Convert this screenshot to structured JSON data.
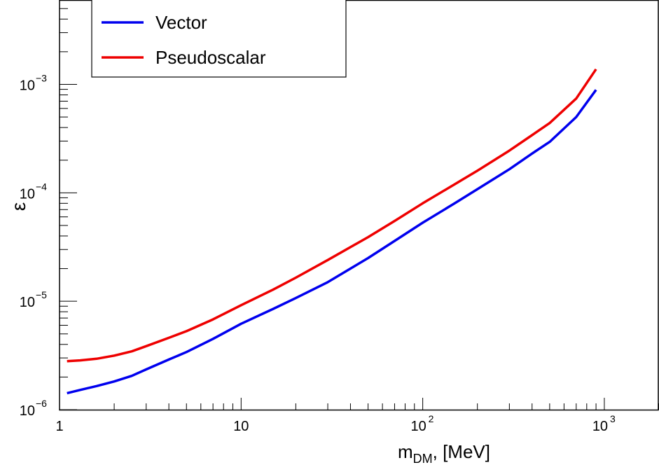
{
  "chart_data": {
    "type": "line",
    "xscale": "log",
    "yscale": "log",
    "xlim": [
      1,
      2000
    ],
    "ylim": [
      1e-06,
      0.006
    ],
    "xlabel": {
      "main": "m",
      "sub": "DM",
      "rest": ", [MeV]"
    },
    "ylabel": "ε",
    "x_ticks": [
      {
        "value": 1,
        "base": "1",
        "exp": ""
      },
      {
        "value": 10,
        "base": "10",
        "exp": ""
      },
      {
        "value": 100,
        "base": "10",
        "exp": "2"
      },
      {
        "value": 1000,
        "base": "10",
        "exp": "3"
      }
    ],
    "y_ticks": [
      {
        "value": 1e-06,
        "base": "10",
        "exp": "−6"
      },
      {
        "value": 1e-05,
        "base": "10",
        "exp": "−5"
      },
      {
        "value": 0.0001,
        "base": "10",
        "exp": "−4"
      },
      {
        "value": 0.001,
        "base": "10",
        "exp": "−3"
      }
    ],
    "grid": false,
    "legend_position": "top-left",
    "series": [
      {
        "name": "Vector",
        "color": "#0000ee",
        "points": [
          [
            1.1,
            1.42e-06
          ],
          [
            1.3,
            1.52e-06
          ],
          [
            1.6,
            1.65e-06
          ],
          [
            2.0,
            1.82e-06
          ],
          [
            2.5,
            2.05e-06
          ],
          [
            3.0,
            2.35e-06
          ],
          [
            4.0,
            2.9e-06
          ],
          [
            5.0,
            3.4e-06
          ],
          [
            7.0,
            4.5e-06
          ],
          [
            10,
            6.2e-06
          ],
          [
            15,
            8.5e-06
          ],
          [
            20,
            1.07e-05
          ],
          [
            30,
            1.5e-05
          ],
          [
            50,
            2.5e-05
          ],
          [
            70,
            3.6e-05
          ],
          [
            100,
            5.3e-05
          ],
          [
            150,
            8e-05
          ],
          [
            200,
            0.000108
          ],
          [
            300,
            0.000165
          ],
          [
            400,
            0.00023
          ],
          [
            500,
            0.000295
          ],
          [
            700,
            0.0005
          ],
          [
            900,
            0.00089
          ]
        ]
      },
      {
        "name": "Pseudoscalar",
        "color": "#ee0000",
        "points": [
          [
            1.1,
            2.8e-06
          ],
          [
            1.3,
            2.85e-06
          ],
          [
            1.6,
            2.95e-06
          ],
          [
            2.0,
            3.15e-06
          ],
          [
            2.5,
            3.45e-06
          ],
          [
            3.0,
            3.85e-06
          ],
          [
            4.0,
            4.6e-06
          ],
          [
            5.0,
            5.3e-06
          ],
          [
            7.0,
            6.8e-06
          ],
          [
            10,
            9.2e-06
          ],
          [
            15,
            1.28e-05
          ],
          [
            20,
            1.65e-05
          ],
          [
            30,
            2.4e-05
          ],
          [
            50,
            3.9e-05
          ],
          [
            70,
            5.5e-05
          ],
          [
            100,
            8e-05
          ],
          [
            150,
            0.00012
          ],
          [
            200,
            0.00016
          ],
          [
            300,
            0.000245
          ],
          [
            400,
            0.00034
          ],
          [
            500,
            0.00044
          ],
          [
            700,
            0.00074
          ],
          [
            900,
            0.00138
          ]
        ]
      }
    ]
  }
}
